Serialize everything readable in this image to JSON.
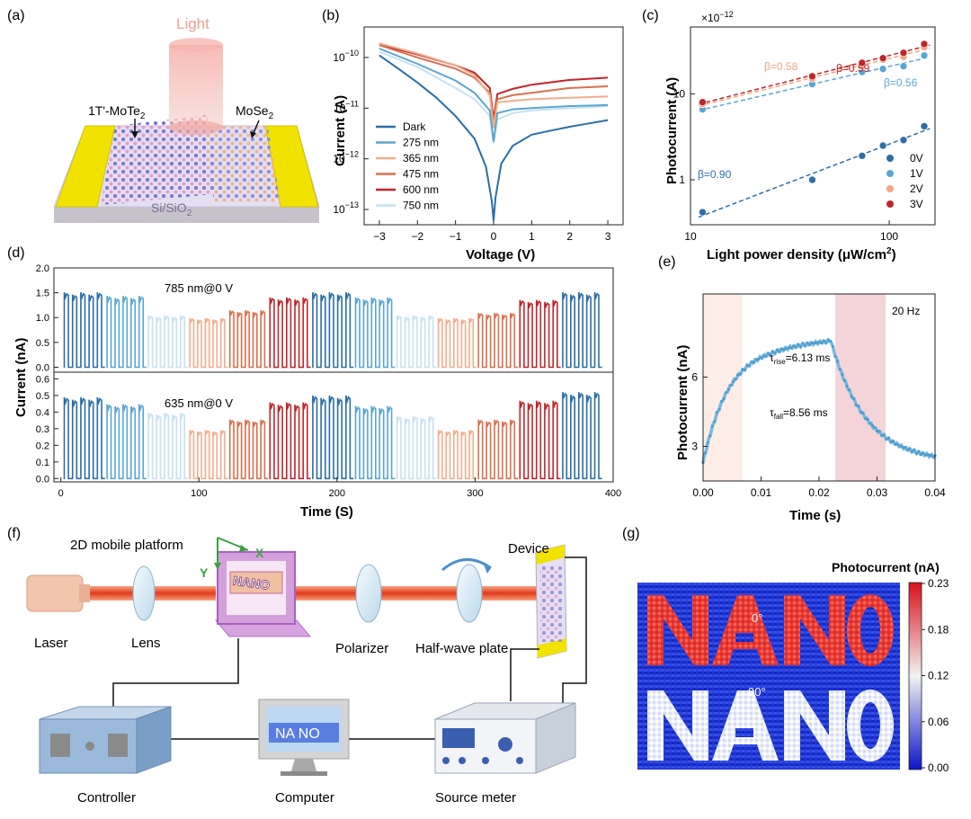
{
  "panel_labels": [
    "(a)",
    "(b)",
    "(c)",
    "(d)",
    "(e)",
    "(f)",
    "(g)"
  ],
  "colors": {
    "dark": "#2a6fa5",
    "n275": "#5aa6cf",
    "n365": "#f2ad8c",
    "n475": "#d9704c",
    "n600": "#c0252b",
    "n750": "#c6e2f2",
    "v0": "#2e6ea6",
    "v1": "#5aa6d6",
    "v2": "#f4a582",
    "v3": "#c0252b",
    "laser": "#e8452a",
    "gold": "#f2e200",
    "substrate": "#d6d0e6"
  },
  "panel_a": {
    "light_label": "Light",
    "mote2_label": "1T'-MoTe",
    "mote2_sub": "2",
    "mose2_label": "MoSe",
    "mose2_sub": "2",
    "substrate_label": "Si/SiO",
    "substrate_sub": "2"
  },
  "panel_f": {
    "platform_label": "2D mobile platform",
    "axis_x": "X",
    "axis_y": "Y",
    "laser": "Laser",
    "lens": "Lens",
    "polarizer": "Polarizer",
    "halfwave": "Half-wave plate",
    "device": "Device",
    "controller": "Controller",
    "computer": "Computer",
    "source_meter": "Source meter",
    "screen_text": "NA NO",
    "mask_text": "NANO"
  },
  "chart_data": [
    {
      "id": "b",
      "type": "line",
      "yscale": "log",
      "xlabel": "Voltage (V)",
      "ylabel": "Current (A)",
      "xlim": [
        -3.4,
        3.4
      ],
      "xticks": [
        -3,
        -2,
        -1,
        0,
        1,
        2,
        3
      ],
      "ylim": [
        5e-14,
        4e-10
      ],
      "yticks": [
        {
          "v": 1e-10,
          "base": "10",
          "exp": "-10"
        },
        {
          "v": 1e-11,
          "base": "10",
          "exp": "-11"
        },
        {
          "v": 1e-12,
          "base": "10",
          "exp": "-12"
        },
        {
          "v": 1e-13,
          "base": "10",
          "exp": "-13"
        }
      ],
      "series": [
        {
          "name": "Dark",
          "color": "#2a6fa5",
          "pts": [
            [
              -3,
              1.1e-10
            ],
            [
              -2.5,
              6e-11
            ],
            [
              -2,
              3.2e-11
            ],
            [
              -1.5,
              1.6e-11
            ],
            [
              -1,
              7e-12
            ],
            [
              -0.5,
              2.5e-12
            ],
            [
              -0.2,
              7e-13
            ],
            [
              -0.05,
              1.5e-13
            ],
            [
              0,
              6e-14
            ],
            [
              0.05,
              1.7e-13
            ],
            [
              0.2,
              8e-13
            ],
            [
              0.5,
              1.8e-12
            ],
            [
              1,
              3e-12
            ],
            [
              1.5,
              3.6e-12
            ],
            [
              2,
              4.3e-12
            ],
            [
              2.5,
              5e-12
            ],
            [
              3,
              5.8e-12
            ]
          ]
        },
        {
          "name": "275 nm",
          "color": "#5aa6cf",
          "pts": [
            [
              -3,
              1.5e-10
            ],
            [
              -2,
              7.5e-11
            ],
            [
              -1,
              3.5e-11
            ],
            [
              -0.5,
              2e-11
            ],
            [
              -0.1,
              9e-12
            ],
            [
              0,
              2.2e-12
            ],
            [
              0.1,
              8e-12
            ],
            [
              0.5,
              9.5e-12
            ],
            [
              1,
              1e-11
            ],
            [
              2,
              1.1e-11
            ],
            [
              3,
              1.15e-11
            ]
          ]
        },
        {
          "name": "365 nm",
          "color": "#f2ad8c",
          "pts": [
            [
              -3,
              1.9e-10
            ],
            [
              -2,
              1.2e-10
            ],
            [
              -1,
              7e-11
            ],
            [
              -0.5,
              4.5e-11
            ],
            [
              -0.1,
              1.8e-11
            ],
            [
              0,
              4e-12
            ],
            [
              0.1,
              1.3e-11
            ],
            [
              0.5,
              1.4e-11
            ],
            [
              1,
              1.5e-11
            ],
            [
              2,
              1.6e-11
            ],
            [
              3,
              1.7e-11
            ]
          ]
        },
        {
          "name": "475 nm",
          "color": "#d9704c",
          "pts": [
            [
              -3,
              1.75e-10
            ],
            [
              -2,
              1e-10
            ],
            [
              -1,
              6e-11
            ],
            [
              -0.5,
              4e-11
            ],
            [
              -0.1,
              2e-11
            ],
            [
              0,
              5e-12
            ],
            [
              0.1,
              1.5e-11
            ],
            [
              0.5,
              1.8e-11
            ],
            [
              1,
              2e-11
            ],
            [
              2,
              2.5e-11
            ],
            [
              3,
              2.7e-11
            ]
          ]
        },
        {
          "name": "600 nm",
          "color": "#c0252b",
          "pts": [
            [
              -3,
              1.8e-10
            ],
            [
              -2,
              1.15e-10
            ],
            [
              -1,
              7e-11
            ],
            [
              -0.5,
              5e-11
            ],
            [
              -0.1,
              2.5e-11
            ],
            [
              0,
              6e-12
            ],
            [
              0.1,
              1.9e-11
            ],
            [
              0.5,
              2.4e-11
            ],
            [
              1,
              2.9e-11
            ],
            [
              2,
              3.6e-11
            ],
            [
              3,
              4e-11
            ]
          ]
        },
        {
          "name": "750 nm",
          "color": "#c6e2f2",
          "pts": [
            [
              -3,
              1.3e-10
            ],
            [
              -2,
              6.5e-11
            ],
            [
              -1,
              2.5e-11
            ],
            [
              -0.5,
              1.5e-11
            ],
            [
              -0.1,
              7e-12
            ],
            [
              0,
              2e-12
            ],
            [
              0.1,
              6e-12
            ],
            [
              0.5,
              8e-12
            ],
            [
              1,
              9e-12
            ],
            [
              2,
              1e-11
            ],
            [
              3,
              1.1e-11
            ]
          ]
        }
      ]
    },
    {
      "id": "c",
      "type": "scatter",
      "xscale": "log",
      "yscale": "log",
      "xlabel": "Light power density (μW/cm",
      "xlabel_sup": "2",
      "xlabel_end": ")",
      "ylabel": "Photocurrent (A)",
      "multiplier": "×10",
      "multiplier_exp": "−12",
      "xlim": [
        10,
        170
      ],
      "ylim": [
        0.3,
        60
      ],
      "xticks": [
        {
          "v": 10,
          "label": "10"
        },
        {
          "v": 100,
          "label": "100"
        }
      ],
      "yticks": [
        {
          "v": 1,
          "label": "1"
        },
        {
          "v": 10,
          "label": "10"
        }
      ],
      "series": [
        {
          "name": "0V",
          "color": "#2e6ea6",
          "x": [
            11.5,
            41,
            73,
            93,
            118,
            150
          ],
          "y": [
            0.42,
            1.0,
            1.9,
            2.5,
            2.9,
            4.2
          ],
          "beta": "β=0.90"
        },
        {
          "name": "1V",
          "color": "#5aa6d6",
          "x": [
            11.5,
            41,
            73,
            93,
            118,
            150
          ],
          "y": [
            6.6,
            13,
            18,
            19.5,
            21,
            28
          ],
          "beta": "β=0.56"
        },
        {
          "name": "2V",
          "color": "#f4a582",
          "x": [
            11.5,
            41,
            73,
            93,
            118,
            150
          ],
          "y": [
            7.6,
            15,
            21,
            25,
            27,
            35
          ],
          "beta": "β=0.58"
        },
        {
          "name": "3V",
          "color": "#c0252b",
          "x": [
            11.5,
            41,
            73,
            93,
            118,
            150
          ],
          "y": [
            8.0,
            16,
            23,
            26,
            30,
            38
          ],
          "beta": "β=0.59"
        }
      ]
    },
    {
      "id": "d",
      "type": "line",
      "xlabel": "Time (S)",
      "ylabel": "Current (nA)",
      "xlim": [
        -5,
        400
      ],
      "xticks": [
        0,
        100,
        200,
        300,
        400
      ],
      "top": {
        "annotation": "785 nm@0 V",
        "ylim": [
          -0.1,
          2.0
        ],
        "yticks": [
          0.0,
          0.5,
          1.0,
          1.5,
          2.0
        ],
        "segments": [
          {
            "t0": 2,
            "t1": 32,
            "amp": 1.45,
            "color": "#2a6fa5"
          },
          {
            "t0": 33,
            "t1": 62,
            "amp": 1.38,
            "color": "#5aa6cf"
          },
          {
            "t0": 63,
            "t1": 92,
            "amp": 1.0,
            "color": "#c6e2f2"
          },
          {
            "t0": 93,
            "t1": 121,
            "amp": 0.95,
            "color": "#f2ad8c"
          },
          {
            "t0": 122,
            "t1": 150,
            "amp": 1.1,
            "color": "#d9704c"
          },
          {
            "t0": 151,
            "t1": 181,
            "amp": 1.35,
            "color": "#c0252b"
          },
          {
            "t0": 182,
            "t1": 212,
            "amp": 1.45,
            "color": "#2a6fa5"
          },
          {
            "t0": 213,
            "t1": 242,
            "amp": 1.35,
            "color": "#5aa6cf"
          },
          {
            "t0": 243,
            "t1": 272,
            "amp": 1.0,
            "color": "#c6e2f2"
          },
          {
            "t0": 273,
            "t1": 301,
            "amp": 0.95,
            "color": "#f2ad8c"
          },
          {
            "t0": 302,
            "t1": 331,
            "amp": 1.05,
            "color": "#d9704c"
          },
          {
            "t0": 332,
            "t1": 362,
            "amp": 1.3,
            "color": "#c0252b"
          },
          {
            "t0": 363,
            "t1": 392,
            "amp": 1.45,
            "color": "#2a6fa5"
          }
        ]
      },
      "bottom": {
        "annotation": "635 nm@0 V",
        "ylim": [
          -0.02,
          0.64
        ],
        "yticks": [
          0.0,
          0.1,
          0.2,
          0.3,
          0.4,
          0.5,
          0.6
        ],
        "segments": [
          {
            "t0": 2,
            "t1": 32,
            "amp": 0.47,
            "color": "#2a6fa5"
          },
          {
            "t0": 33,
            "t1": 62,
            "amp": 0.43,
            "color": "#5aa6cf"
          },
          {
            "t0": 63,
            "t1": 92,
            "amp": 0.38,
            "color": "#c6e2f2"
          },
          {
            "t0": 93,
            "t1": 121,
            "amp": 0.28,
            "color": "#f2ad8c"
          },
          {
            "t0": 122,
            "t1": 150,
            "amp": 0.34,
            "color": "#d9704c"
          },
          {
            "t0": 151,
            "t1": 181,
            "amp": 0.44,
            "color": "#c0252b"
          },
          {
            "t0": 182,
            "t1": 212,
            "amp": 0.48,
            "color": "#2a6fa5"
          },
          {
            "t0": 213,
            "t1": 242,
            "amp": 0.42,
            "color": "#5aa6cf"
          },
          {
            "t0": 243,
            "t1": 272,
            "amp": 0.36,
            "color": "#c6e2f2"
          },
          {
            "t0": 273,
            "t1": 301,
            "amp": 0.28,
            "color": "#f2ad8c"
          },
          {
            "t0": 302,
            "t1": 331,
            "amp": 0.34,
            "color": "#d9704c"
          },
          {
            "t0": 332,
            "t1": 362,
            "amp": 0.45,
            "color": "#c0252b"
          },
          {
            "t0": 363,
            "t1": 392,
            "amp": 0.5,
            "color": "#2a6fa5"
          }
        ]
      }
    },
    {
      "id": "e",
      "type": "scatter",
      "xlabel": "Time (s)",
      "ylabel": "Photocurrent (nA)",
      "xlim": [
        0,
        0.04
      ],
      "ylim": [
        1.5,
        9.6
      ],
      "xticks": [
        0.0,
        0.01,
        0.02,
        0.03,
        0.04
      ],
      "yticks": [
        3,
        6
      ],
      "freq": "20 Hz",
      "tau_rise": "6.13 ms",
      "tau_fall": "8.56 ms",
      "rise_region": [
        0.0,
        0.0068
      ],
      "fall_region": [
        0.0228,
        0.0315
      ],
      "baseline": 2.3,
      "plateau": 7.4,
      "peak": 7.6,
      "rise_tau": 0.0045,
      "fall_start": 0.022,
      "fall_tau": 0.006
    },
    {
      "id": "g",
      "type": "heatmap",
      "colorbar_title": "Photocurrent (nA)",
      "colorbar_ticks": [
        "0.23",
        "0.18",
        "0.12",
        "0.06",
        "0.00"
      ],
      "labels": [
        "0°",
        "90°"
      ],
      "text_top": "NA NO",
      "text_bottom": "NA NO"
    }
  ]
}
